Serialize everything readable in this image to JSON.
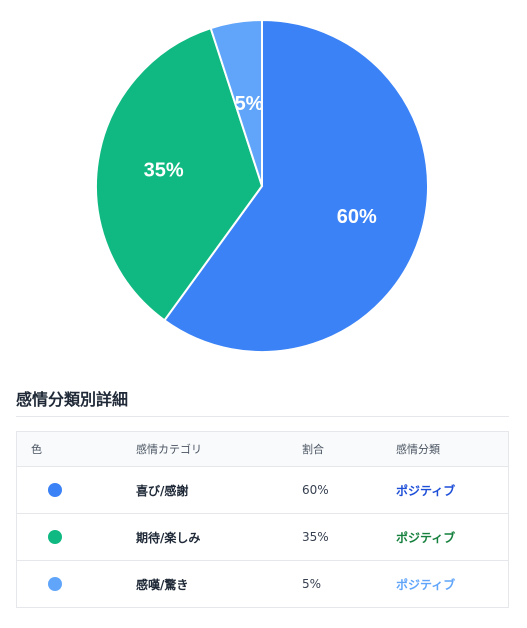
{
  "colors": {
    "joy": "#3b82f6",
    "hope": "#10b981",
    "wonder": "#60a5fa",
    "positive_1": "#1d4ed8",
    "positive_2": "#15803d",
    "positive_3": "#60a5fa"
  },
  "chart_data": {
    "type": "pie",
    "title": "",
    "slices": [
      {
        "category": "喜び/感謝",
        "value": 60,
        "label": "60%",
        "color": "#3b82f6"
      },
      {
        "category": "期待/楽しみ",
        "value": 35,
        "label": "35%",
        "color": "#10b981"
      },
      {
        "category": "感嘆/驚き",
        "value": 5,
        "label": "5%",
        "color": "#60a5fa"
      }
    ]
  },
  "section": {
    "title": "感情分類別詳細"
  },
  "table": {
    "headers": {
      "color": "色",
      "category": "感情カテゴリ",
      "ratio": "割合",
      "classification": "感情分類"
    },
    "rows": [
      {
        "category": "喜び/感謝",
        "ratio": "60%",
        "classification": "ポジティブ",
        "dot_color": "#3b82f6",
        "class_color": "#1d4ed8"
      },
      {
        "category": "期待/楽しみ",
        "ratio": "35%",
        "classification": "ポジティブ",
        "dot_color": "#10b981",
        "class_color": "#15803d"
      },
      {
        "category": "感嘆/驚き",
        "ratio": "5%",
        "classification": "ポジティブ",
        "dot_color": "#60a5fa",
        "class_color": "#60a5fa"
      }
    ]
  }
}
